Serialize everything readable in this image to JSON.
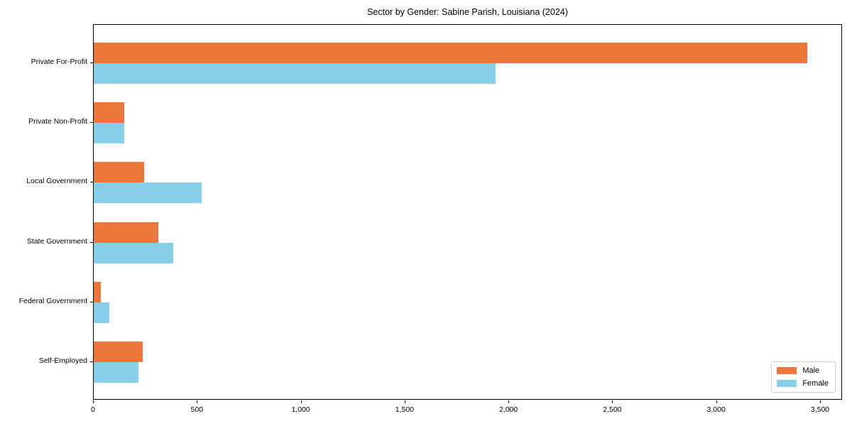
{
  "title": "Sector by Gender: Sabine Parish, Louisiana (2024)",
  "colors": {
    "male": "#ea773b",
    "female": "#87ceeb",
    "spine": "#000000",
    "legend_border": "#cccccc",
    "background": "#ffffff"
  },
  "chart_data": {
    "type": "bar",
    "orientation": "horizontal",
    "title": "Sector by Gender: Sabine Parish, Louisiana (2024)",
    "categories": [
      "Private For-Profit",
      "Private Non-Profit",
      "Local Government",
      "State Government",
      "Federal Government",
      "Self-Employed"
    ],
    "series": [
      {
        "name": "Male",
        "color": "#ea773b",
        "values": [
          3434,
          147,
          243,
          311,
          34,
          236
        ]
      },
      {
        "name": "Female",
        "color": "#87ceeb",
        "values": [
          1933,
          147,
          520,
          383,
          75,
          216
        ]
      }
    ],
    "xlabel": "",
    "ylabel": "",
    "xlim": [
      0,
      3606
    ],
    "xticks": [
      0,
      500,
      1000,
      1500,
      2000,
      2500,
      3000,
      3500
    ],
    "xtick_labels": [
      "0",
      "500",
      "1,000",
      "1,500",
      "2,000",
      "2,500",
      "3,000",
      "3,500"
    ],
    "grid": false,
    "legend_position": "lower right"
  }
}
